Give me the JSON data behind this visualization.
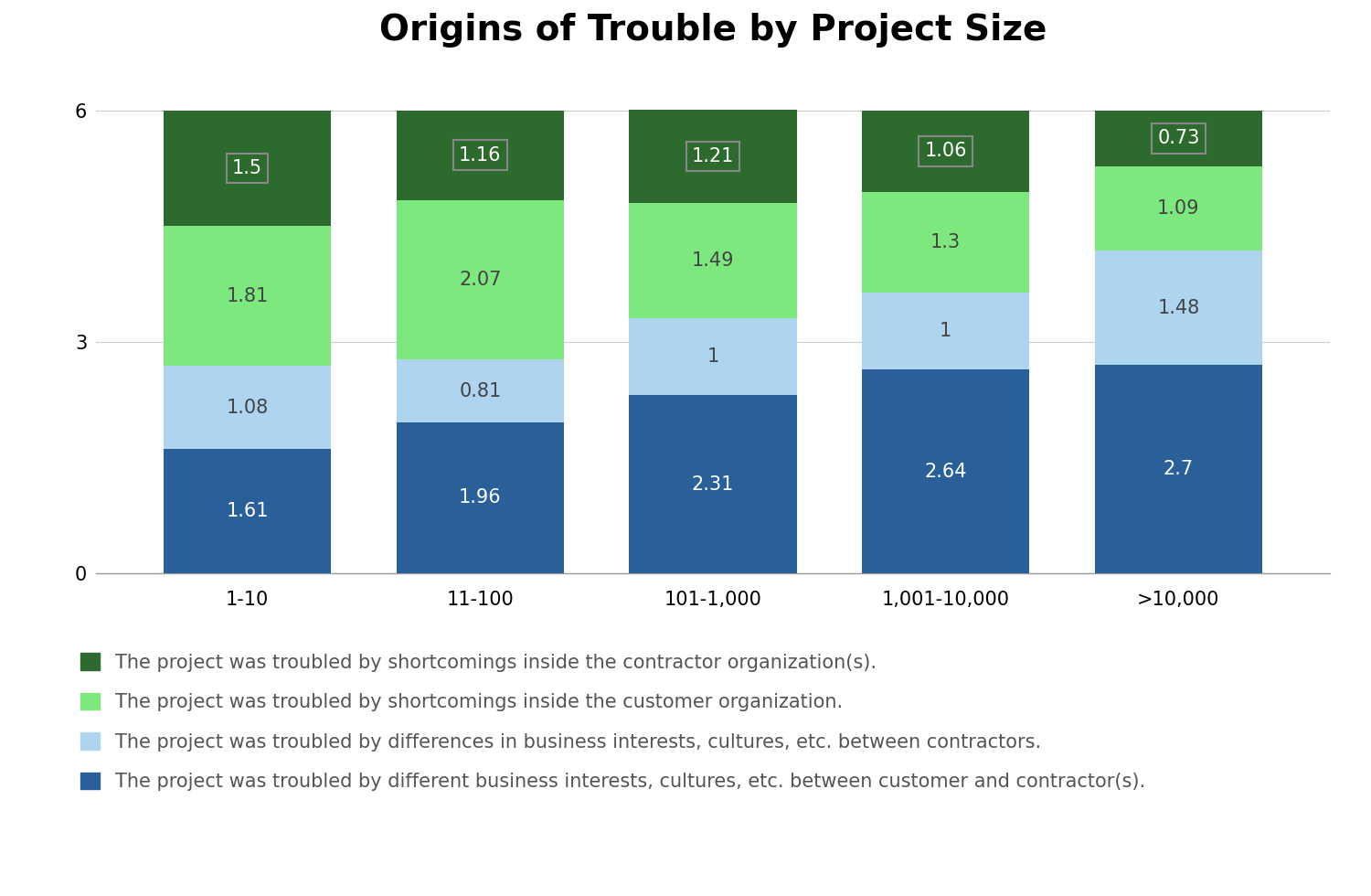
{
  "title": "Origins of Trouble by Project Size",
  "categories": [
    "1-10",
    "11-100",
    "101-1,000",
    "1,001-10,000",
    ">10,000"
  ],
  "series": [
    {
      "label": "The project was troubled by different business interests, cultures, etc. between customer and contractor(s).",
      "color": "#2a6099",
      "values": [
        1.61,
        1.96,
        2.31,
        2.64,
        2.7
      ],
      "text_color": "#ffffff"
    },
    {
      "label": "The project was troubled by differences in business interests, cultures, etc. between contractors.",
      "color": "#aed4f0",
      "values": [
        1.08,
        0.81,
        1.0,
        1.0,
        1.48
      ],
      "text_color": "#444444"
    },
    {
      "label": "The project was troubled by shortcomings inside the customer organization.",
      "color": "#7de87d",
      "values": [
        1.81,
        2.07,
        1.49,
        1.3,
        1.09
      ],
      "text_color": "#444444"
    },
    {
      "label": "The project was troubled by shortcomings inside the contractor organization(s).",
      "color": "#2d6a2d",
      "values": [
        1.5,
        1.16,
        1.21,
        1.06,
        0.73
      ],
      "text_color": "#ffffff",
      "boxed": true
    }
  ],
  "ylim": [
    0,
    6.5
  ],
  "yticks": [
    0,
    3,
    6
  ],
  "bar_width": 0.72,
  "background_color": "#ffffff",
  "title_fontsize": 28,
  "label_fontsize": 15,
  "tick_fontsize": 15,
  "legend_fontsize": 15
}
